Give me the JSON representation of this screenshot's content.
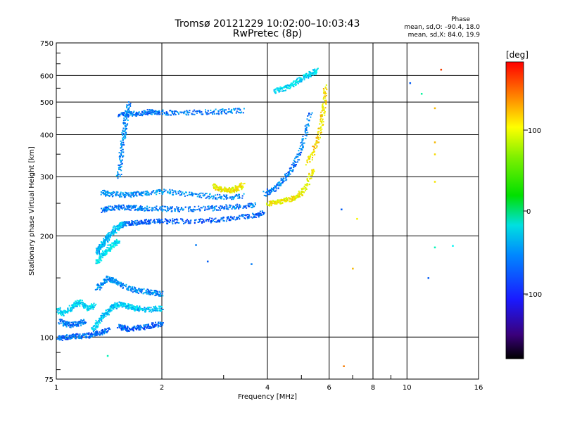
{
  "header": {
    "title": "Tromsø 20121229 10:02:00–10:03:43",
    "subtitle": "RwPretec (8p)"
  },
  "phase_box": {
    "title": "Phase",
    "o_stats": "mean, sd,O: –90.4, 18.0",
    "x_stats": "mean, sd,X:  84.0, 19.9"
  },
  "colorbar": {
    "unit": "[deg]",
    "ticks": [
      "100",
      "0",
      "–100"
    ]
  },
  "chart_data": {
    "type": "scatter",
    "title": "Tromsø 20121229 10:02:00–10:03:43",
    "subtitle": "RwPretec (8p)",
    "xlabel": "Frequency [MHz]",
    "ylabel": "Stationary phase Virtual Height [km]",
    "xscale": "log",
    "yscale": "log",
    "xlim": [
      1,
      16
    ],
    "ylim": [
      75,
      750
    ],
    "xticks": [
      1,
      2,
      4,
      6,
      8,
      10,
      16
    ],
    "xtick_labels": [
      "1",
      "2",
      "4",
      "6",
      "8",
      "10",
      "16"
    ],
    "yticks": [
      75,
      100,
      200,
      300,
      400,
      500,
      600,
      750
    ],
    "ytick_labels": [
      "75",
      "100",
      "200",
      "300",
      "400",
      "500",
      "600",
      "750"
    ],
    "grid": true,
    "colorbar": {
      "label": "[deg]",
      "range": [
        -180,
        180
      ],
      "ticks": [
        100,
        0,
        -100
      ]
    },
    "traces": [
      {
        "x": [
          1.0,
          1.05,
          1.1,
          1.15,
          1.2,
          1.25,
          1.3,
          1.35,
          1.4
        ],
        "y": [
          100,
          100,
          101,
          101,
          101,
          102,
          103,
          104,
          106
        ],
        "phase": -105
      },
      {
        "x": [
          1.02,
          1.06,
          1.1,
          1.15,
          1.2
        ],
        "y": [
          112,
          110,
          109,
          110,
          112
        ],
        "phase": -100
      },
      {
        "x": [
          1.0,
          1.04,
          1.08,
          1.12,
          1.16,
          1.2,
          1.24,
          1.28
        ],
        "y": [
          122,
          118,
          121,
          125,
          128,
          124,
          122,
          126
        ],
        "phase": -70
      },
      {
        "x": [
          1.26,
          1.3,
          1.34,
          1.38,
          1.42,
          1.46,
          1.5,
          1.55,
          1.6,
          1.65,
          1.7,
          1.8,
          1.9,
          2.0
        ],
        "y": [
          106,
          110,
          115,
          118,
          122,
          124,
          126,
          125,
          124,
          123,
          122,
          121,
          122,
          122
        ],
        "phase": -75
      },
      {
        "x": [
          1.3,
          1.35,
          1.4,
          1.45,
          1.5,
          1.6,
          1.7,
          1.8,
          1.9,
          2.0
        ],
        "y": [
          140,
          145,
          150,
          148,
          145,
          140,
          138,
          137,
          136,
          135
        ],
        "phase": -95
      },
      {
        "x": [
          1.5,
          1.55,
          1.6,
          1.7,
          1.8,
          1.9,
          2.0
        ],
        "y": [
          108,
          107,
          106,
          107,
          108,
          109,
          110
        ],
        "phase": -110
      },
      {
        "x": [
          1.3,
          1.32,
          1.34,
          1.36,
          1.38,
          1.4,
          1.44,
          1.48,
          1.52,
          1.56
        ],
        "y": [
          180,
          184,
          188,
          192,
          196,
          200,
          206,
          212,
          216,
          218
        ],
        "phase": -80
      },
      {
        "x": [
          1.3,
          1.34,
          1.38,
          1.42,
          1.46,
          1.5
        ],
        "y": [
          168,
          174,
          180,
          186,
          190,
          194
        ],
        "phase": -65
      },
      {
        "x": [
          1.56,
          1.65,
          1.75,
          1.85,
          2.0,
          2.2,
          2.5,
          2.8,
          3.1,
          3.4,
          3.7,
          3.9
        ],
        "y": [
          218,
          220,
          221,
          222,
          222,
          222,
          222,
          224,
          226,
          229,
          232,
          235
        ],
        "phase": -110
      },
      {
        "x": [
          1.35,
          1.4,
          1.5,
          1.6,
          1.7,
          1.8,
          2.0,
          2.2,
          2.5,
          2.8,
          3.1,
          3.4,
          3.7
        ],
        "y": [
          240,
          242,
          244,
          244,
          243,
          242,
          242,
          241,
          242,
          243,
          245,
          246,
          248
        ],
        "phase": -100
      },
      {
        "x": [
          1.35,
          1.4,
          1.5,
          1.6,
          1.7,
          1.8,
          2.0,
          2.2,
          2.5,
          2.8,
          3.1,
          3.4
        ],
        "y": [
          270,
          268,
          267,
          266,
          268,
          270,
          272,
          270,
          266,
          263,
          262,
          264
        ],
        "phase": -95
      },
      {
        "x": [
          1.5,
          1.6,
          1.7,
          1.8,
          1.9,
          2.0,
          2.2,
          2.5,
          2.8,
          3.1,
          3.4
        ],
        "y": [
          460,
          462,
          465,
          468,
          470,
          468,
          466,
          468,
          470,
          472,
          474
        ],
        "phase": -100
      },
      {
        "x": [
          1.5,
          1.52,
          1.54,
          1.56,
          1.58,
          1.6
        ],
        "y": [
          300,
          340,
          380,
          420,
          460,
          500
        ],
        "phase": -95
      },
      {
        "x": [
          2.8,
          2.9,
          3.0,
          3.1,
          3.2,
          3.3,
          3.4
        ],
        "y": [
          282,
          278,
          275,
          274,
          276,
          280,
          285
        ],
        "phase": 100
      },
      {
        "x": [
          3.9,
          4.1,
          4.3,
          4.5,
          4.7,
          4.9,
          5.1,
          5.3
        ],
        "y": [
          268,
          275,
          285,
          300,
          320,
          350,
          400,
          470
        ],
        "phase": -100
      },
      {
        "x": [
          4.0,
          4.2,
          4.4,
          4.6,
          4.8,
          5.0,
          5.2,
          5.4
        ],
        "y": [
          250,
          252,
          255,
          258,
          262,
          270,
          290,
          320
        ],
        "phase": 100
      },
      {
        "x": [
          5.2,
          5.4,
          5.6,
          5.7,
          5.8,
          5.85
        ],
        "y": [
          330,
          360,
          400,
          450,
          500,
          560
        ],
        "phase": 110
      },
      {
        "x": [
          4.2,
          4.4,
          4.6,
          4.8,
          5.0,
          5.2,
          5.4,
          5.5
        ],
        "y": [
          540,
          550,
          560,
          575,
          590,
          605,
          615,
          625
        ],
        "phase": -70
      }
    ],
    "isolated_points": [
      {
        "x": 12.5,
        "y": 625,
        "phase": 160
      },
      {
        "x": 10.2,
        "y": 570,
        "phase": -110
      },
      {
        "x": 11.0,
        "y": 530,
        "phase": -30
      },
      {
        "x": 12.0,
        "y": 480,
        "phase": 120
      },
      {
        "x": 12.0,
        "y": 380,
        "phase": 120
      },
      {
        "x": 12.0,
        "y": 350,
        "phase": 110
      },
      {
        "x": 12.0,
        "y": 290,
        "phase": 105
      },
      {
        "x": 12.0,
        "y": 185,
        "phase": -40
      },
      {
        "x": 13.5,
        "y": 187,
        "phase": -60
      },
      {
        "x": 11.5,
        "y": 150,
        "phase": -110
      },
      {
        "x": 6.5,
        "y": 240,
        "phase": -110
      },
      {
        "x": 6.6,
        "y": 82,
        "phase": 140
      },
      {
        "x": 7.0,
        "y": 160,
        "phase": 120
      },
      {
        "x": 7.2,
        "y": 225,
        "phase": 100
      },
      {
        "x": 2.5,
        "y": 188,
        "phase": -100
      },
      {
        "x": 2.7,
        "y": 168,
        "phase": -110
      },
      {
        "x": 3.6,
        "y": 165,
        "phase": -100
      },
      {
        "x": 1.4,
        "y": 88,
        "phase": -40
      }
    ]
  }
}
